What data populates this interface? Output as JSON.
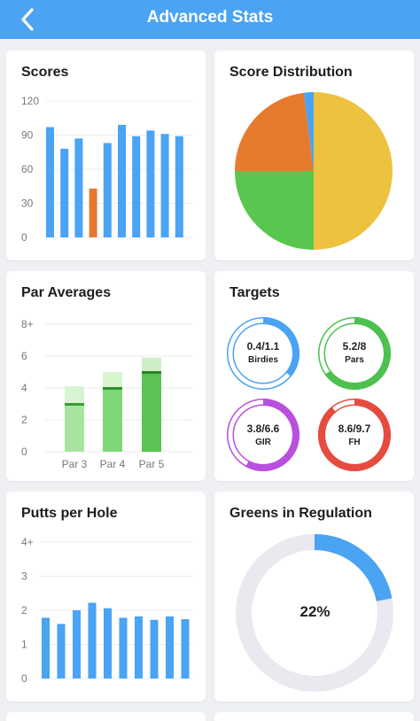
{
  "header": {
    "title": "Advanced Stats"
  },
  "colors": {
    "header": "#4aa3f3",
    "bar_blue": "#4aa3f3",
    "bar_orange": "#e4782f",
    "pie_yellow": "#ecc23e",
    "pie_green": "#59c64f",
    "pie_orange": "#e67b2e",
    "pie_blue": "#4aa3f3",
    "ring_blue": "#4aa3f3",
    "ring_green": "#4cc14e",
    "ring_purple": "#b94fde",
    "ring_red": "#e64b3f"
  },
  "scores": {
    "title": "Scores",
    "chart_data": {
      "type": "bar",
      "ylim": [
        0,
        120
      ],
      "yticks": [
        "0",
        "30",
        "60",
        "90",
        "120"
      ],
      "values": [
        97,
        78,
        87,
        43,
        83,
        99,
        89,
        94,
        91,
        89
      ],
      "highlight_index": 3
    }
  },
  "distribution": {
    "title": "Score Distribution",
    "chart_data": {
      "type": "pie",
      "slices": [
        {
          "share": 0.5,
          "color": "#ecc23e"
        },
        {
          "share": 0.25,
          "color": "#59c64f"
        },
        {
          "share": 0.23,
          "color": "#e67b2e"
        },
        {
          "share": 0.02,
          "color": "#4aa3f3"
        }
      ]
    }
  },
  "par": {
    "title": "Par Averages",
    "chart_data": {
      "type": "bar",
      "ylim": [
        0,
        8
      ],
      "yticks": [
        "0",
        "2",
        "4",
        "6",
        "8+"
      ],
      "categories": [
        "Par 3",
        "Par 4",
        "Par 5"
      ],
      "series": [
        {
          "values": [
            3.0,
            4.0,
            5.0
          ]
        },
        {
          "values": [
            4.1,
            5.0,
            5.9
          ]
        }
      ],
      "colors": [
        {
          "fill": "#a9e3a0",
          "light": "#d8f3d2",
          "line": "#3a9c35"
        },
        {
          "fill": "#7dd877",
          "light": "#d6f5cf",
          "line": "#2f8f2b"
        },
        {
          "fill": "#5ac351",
          "light": "#cdeec6",
          "line": "#2a8426"
        }
      ]
    }
  },
  "targets": {
    "title": "Targets",
    "items": [
      {
        "value": "0.4/1.1",
        "label": "Birdies",
        "color": "#4aa3f3",
        "fraction": 0.36
      },
      {
        "value": "5.2/8",
        "label": "Pars",
        "color": "#4cc14e",
        "fraction": 0.65
      },
      {
        "value": "3.8/6.6",
        "label": "GIR",
        "color": "#b94fde",
        "fraction": 0.58
      },
      {
        "value": "8.6/9.7",
        "label": "FH",
        "color": "#e64b3f",
        "fraction": 0.89
      }
    ]
  },
  "putts": {
    "title": "Putts per Hole",
    "chart_data": {
      "type": "bar",
      "ylim": [
        0,
        4
      ],
      "yticks": [
        "0",
        "1",
        "2",
        "3",
        "4+"
      ],
      "values": [
        1.78,
        1.6,
        2.0,
        2.22,
        2.06,
        1.78,
        1.82,
        1.72,
        1.82,
        1.74
      ]
    }
  },
  "gir": {
    "title": "Greens in Regulation",
    "percent_label": "22%",
    "chart_data": {
      "type": "pie",
      "value": 0.22
    }
  }
}
